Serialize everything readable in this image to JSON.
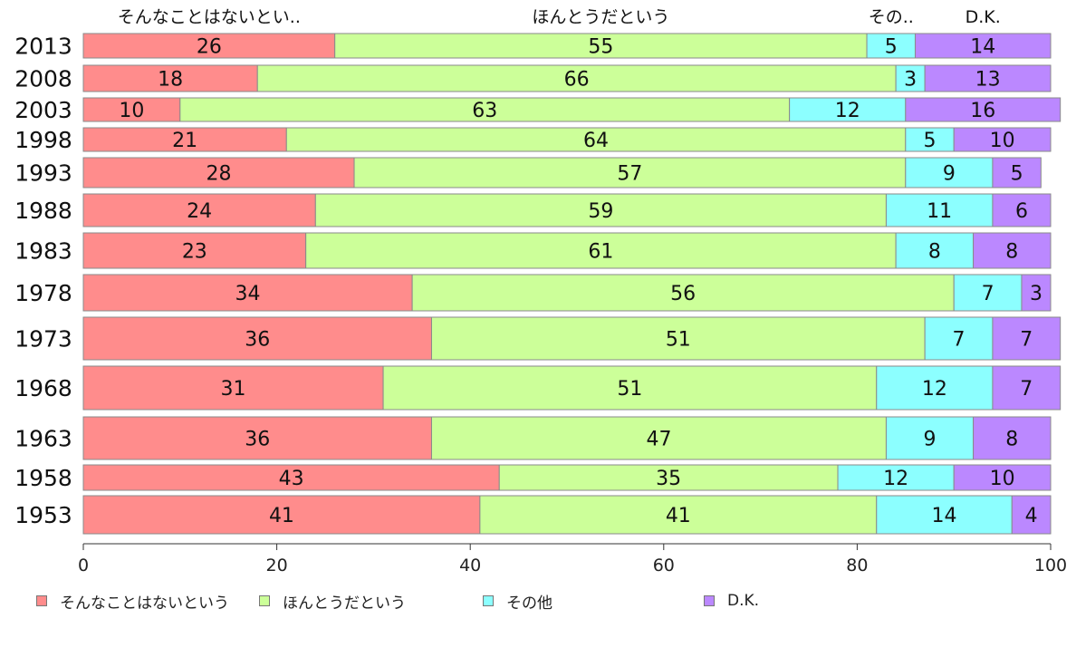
{
  "chart_data": {
    "type": "bar",
    "orientation": "horizontal",
    "stacked": true,
    "categories": [
      "2013",
      "2008",
      "2003",
      "1998",
      "1993",
      "1988",
      "1983",
      "1978",
      "1973",
      "1968",
      "1963",
      "1958",
      "1953"
    ],
    "series": [
      {
        "name": "そんなことはないという",
        "header": "そんなことはないとい..",
        "color": "#ff8c8c",
        "values": [
          26,
          18,
          10,
          21,
          28,
          24,
          23,
          34,
          36,
          31,
          36,
          43,
          41
        ]
      },
      {
        "name": "ほんとうだという",
        "header": "ほんとうだという",
        "color": "#ccff99",
        "values": [
          55,
          66,
          63,
          64,
          57,
          59,
          61,
          56,
          51,
          51,
          47,
          35,
          41
        ]
      },
      {
        "name": "その他",
        "header": "その..",
        "color": "#8cffff",
        "values": [
          5,
          3,
          12,
          5,
          9,
          11,
          8,
          7,
          7,
          12,
          9,
          12,
          14
        ]
      },
      {
        "name": "D.K.",
        "header": "D.K.",
        "color": "#bb88ff",
        "values": [
          14,
          13,
          16,
          10,
          5,
          6,
          8,
          3,
          7,
          7,
          8,
          10,
          4
        ]
      }
    ],
    "xlim": [
      0,
      100
    ],
    "xticks": [
      0,
      20,
      40,
      60,
      80,
      100
    ],
    "xlabel": "",
    "ylabel": "",
    "title": "",
    "legend": "bottom"
  }
}
